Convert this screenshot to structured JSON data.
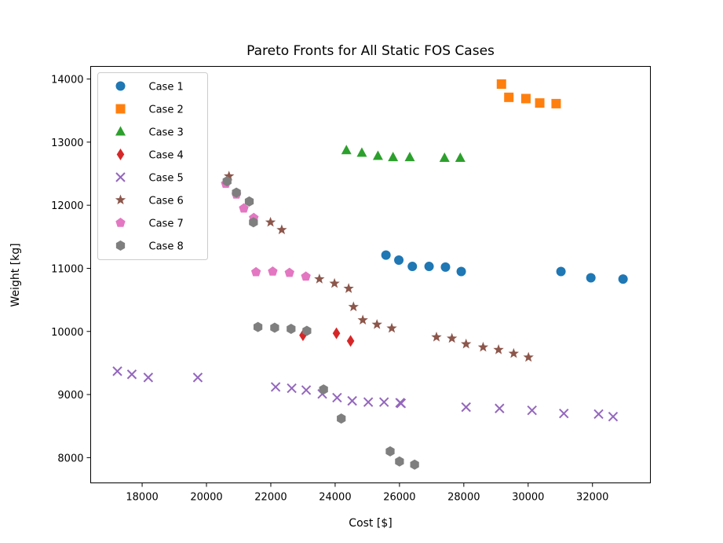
{
  "chart_data": {
    "type": "scatter",
    "title": "Pareto Fronts for All Static FOS Cases",
    "xlabel": "Cost [$]",
    "ylabel": "Weight [kg]",
    "xlim": [
      16400,
      33800
    ],
    "ylim": [
      7600,
      14200
    ],
    "xticks": [
      18000,
      20000,
      22000,
      24000,
      26000,
      28000,
      30000,
      32000
    ],
    "yticks": [
      8000,
      9000,
      10000,
      11000,
      12000,
      13000,
      14000
    ],
    "grid": false,
    "legend_position": "upper-left",
    "series": [
      {
        "name": "Case 1",
        "marker": "circle",
        "color": "#1f77b4",
        "points": [
          [
            25580,
            11210
          ],
          [
            25980,
            11130
          ],
          [
            26400,
            11030
          ],
          [
            26920,
            11030
          ],
          [
            27430,
            11020
          ],
          [
            27920,
            10950
          ],
          [
            31020,
            10950
          ],
          [
            31950,
            10850
          ],
          [
            32950,
            10830
          ]
        ]
      },
      {
        "name": "Case 2",
        "marker": "square",
        "color": "#ff7f0e",
        "points": [
          [
            29170,
            13920
          ],
          [
            29400,
            13710
          ],
          [
            29930,
            13690
          ],
          [
            30360,
            13620
          ],
          [
            30870,
            13610
          ]
        ]
      },
      {
        "name": "Case 3",
        "marker": "triangle",
        "color": "#2ca02c",
        "points": [
          [
            24350,
            12870
          ],
          [
            24830,
            12830
          ],
          [
            25330,
            12780
          ],
          [
            25800,
            12760
          ],
          [
            26320,
            12760
          ],
          [
            27400,
            12750
          ],
          [
            27890,
            12750
          ]
        ]
      },
      {
        "name": "Case 4",
        "marker": "diamond",
        "color": "#d62728",
        "points": [
          [
            23000,
            9940
          ],
          [
            24040,
            9970
          ],
          [
            24480,
            9850
          ]
        ]
      },
      {
        "name": "Case 5",
        "marker": "x",
        "color": "#9467bd",
        "points": [
          [
            17230,
            9370
          ],
          [
            17680,
            9320
          ],
          [
            18190,
            9270
          ],
          [
            19730,
            9270
          ],
          [
            22150,
            9120
          ],
          [
            22650,
            9100
          ],
          [
            23100,
            9070
          ],
          [
            23600,
            9010
          ],
          [
            24060,
            8950
          ],
          [
            24530,
            8900
          ],
          [
            25030,
            8880
          ],
          [
            25520,
            8880
          ],
          [
            26020,
            8870
          ],
          [
            26050,
            8860
          ],
          [
            28070,
            8800
          ],
          [
            29110,
            8780
          ],
          [
            30120,
            8750
          ],
          [
            31110,
            8700
          ],
          [
            32190,
            8690
          ],
          [
            32640,
            8650
          ]
        ]
      },
      {
        "name": "Case 6",
        "marker": "star",
        "color": "#8c564b",
        "points": [
          [
            20700,
            12460
          ],
          [
            21990,
            11730
          ],
          [
            22340,
            11610
          ],
          [
            23510,
            10830
          ],
          [
            23980,
            10760
          ],
          [
            24420,
            10680
          ],
          [
            24570,
            10390
          ],
          [
            24860,
            10180
          ],
          [
            25300,
            10110
          ],
          [
            25760,
            10050
          ],
          [
            27150,
            9910
          ],
          [
            27630,
            9890
          ],
          [
            28070,
            9800
          ],
          [
            28600,
            9750
          ],
          [
            29080,
            9710
          ],
          [
            29550,
            9650
          ],
          [
            30010,
            9590
          ]
        ]
      },
      {
        "name": "Case 7",
        "marker": "pentagon",
        "color": "#e377c2",
        "points": [
          [
            20600,
            12340
          ],
          [
            20930,
            12170
          ],
          [
            21160,
            11950
          ],
          [
            21470,
            11800
          ],
          [
            21540,
            10940
          ],
          [
            22060,
            10950
          ],
          [
            22580,
            10930
          ],
          [
            23090,
            10870
          ]
        ]
      },
      {
        "name": "Case 8",
        "marker": "hexagon",
        "color": "#7f7f7f",
        "points": [
          [
            20640,
            12380
          ],
          [
            20930,
            12200
          ],
          [
            21330,
            12060
          ],
          [
            21460,
            11730
          ],
          [
            21600,
            10070
          ],
          [
            22120,
            10060
          ],
          [
            22630,
            10040
          ],
          [
            23120,
            10010
          ],
          [
            23640,
            9080
          ],
          [
            24190,
            8620
          ],
          [
            25710,
            8100
          ],
          [
            26000,
            7940
          ],
          [
            26470,
            7890
          ]
        ]
      }
    ]
  }
}
